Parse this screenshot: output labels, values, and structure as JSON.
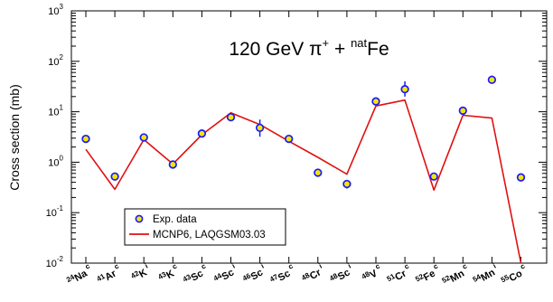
{
  "chart_data": {
    "type": "scatter",
    "title": {
      "main_prefix": "120 GeV ",
      "pi_symbol": "π",
      "pi_charge": "+",
      "plus": " + ",
      "target_sup": "nat",
      "target": "Fe"
    },
    "ylabel": "Cross section (mb)",
    "yscale": "log",
    "ylim": [
      0.01,
      1000
    ],
    "y_ticks": [
      {
        "base": "10",
        "exp": "-2",
        "value": 0.01
      },
      {
        "base": "10",
        "exp": "-1",
        "value": 0.1
      },
      {
        "base": "10",
        "exp": "0",
        "value": 1
      },
      {
        "base": "10",
        "exp": "1",
        "value": 10
      },
      {
        "base": "10",
        "exp": "2",
        "value": 100
      },
      {
        "base": "10",
        "exp": "3",
        "value": 1000
      }
    ],
    "categories": [
      {
        "mass": "24",
        "element": "Na",
        "type": "c"
      },
      {
        "mass": "41",
        "element": "Ar",
        "type": "c"
      },
      {
        "mass": "42",
        "element": "K",
        "type": "i"
      },
      {
        "mass": "43",
        "element": "K",
        "type": "c"
      },
      {
        "mass": "43",
        "element": "Sc",
        "type": "c"
      },
      {
        "mass": "44",
        "element": "Sc",
        "type": "i"
      },
      {
        "mass": "46",
        "element": "Sc",
        "type": "i"
      },
      {
        "mass": "47",
        "element": "Sc",
        "type": "c"
      },
      {
        "mass": "48",
        "element": "Cr",
        "type": "i"
      },
      {
        "mass": "48",
        "element": "Sc",
        "type": "i"
      },
      {
        "mass": "48",
        "element": "V",
        "type": "c"
      },
      {
        "mass": "51",
        "element": "Cr",
        "type": "c"
      },
      {
        "mass": "52",
        "element": "Fe",
        "type": "c"
      },
      {
        "mass": "52",
        "element": "Mn",
        "type": "c"
      },
      {
        "mass": "54",
        "element": "Mn",
        "type": "i"
      },
      {
        "mass": "55",
        "element": "Co",
        "type": "c"
      }
    ],
    "series": [
      {
        "name": "Exp. data",
        "kind": "points",
        "marker_fill": "#f2e600",
        "marker_edge": "#1a1aff",
        "values": [
          2.9,
          0.52,
          3.1,
          0.9,
          3.7,
          7.8,
          4.8,
          2.9,
          0.62,
          0.37,
          16,
          28,
          0.52,
          10.5,
          43,
          0.5
        ],
        "errors": [
          [
            0.15,
            0.15
          ],
          [
            0.05,
            0.05
          ],
          [
            0.25,
            0.25
          ],
          [
            0.06,
            0.06
          ],
          [
            0.3,
            0.3
          ],
          [
            0.8,
            0.8
          ],
          [
            1.6,
            2.2
          ],
          [
            0.2,
            0.2
          ],
          [
            0.05,
            0.05
          ],
          [
            0.07,
            0.07
          ],
          [
            1.2,
            1.2
          ],
          [
            8,
            12
          ],
          [
            0.04,
            0.04
          ],
          [
            0.8,
            0.8
          ],
          [
            7,
            9
          ],
          [
            0.04,
            0.04
          ]
        ]
      },
      {
        "name": "MCNP6, LAQGSM03.03",
        "kind": "line",
        "color": "#e01010",
        "values": [
          1.8,
          0.29,
          2.8,
          0.92,
          3.5,
          9.5,
          5.6,
          2.6,
          1.25,
          0.58,
          13,
          17,
          0.28,
          8.5,
          7.5,
          0.01
        ]
      }
    ],
    "legend": {
      "position": "bottom-left"
    },
    "grid": false
  }
}
